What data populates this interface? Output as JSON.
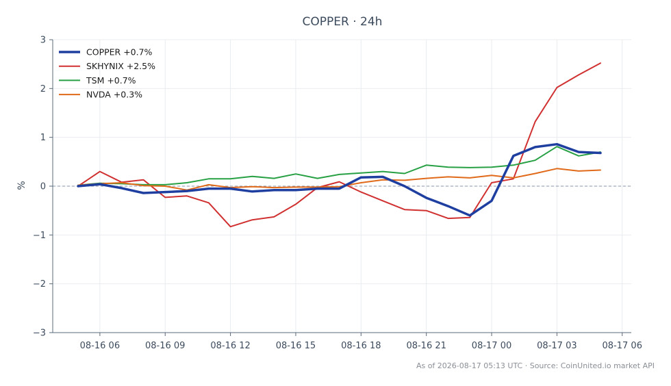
{
  "chart_data": {
    "type": "line",
    "title": "COPPER · 24h",
    "ylabel": "%",
    "xlabel": "",
    "ylim": [
      -3,
      3
    ],
    "xlim": [
      "08-16 03:50",
      "08-17 06:25"
    ],
    "yticks": [
      3,
      2,
      1,
      0,
      -1,
      -2,
      -3
    ],
    "ytick_labels": [
      "3",
      "2",
      "1",
      "0",
      "−1",
      "−2",
      "−3"
    ],
    "xticks": [
      "08-16 06:00",
      "08-16 09:00",
      "08-16 12:00",
      "08-16 15:00",
      "08-16 18:00",
      "08-16 21:00",
      "08-17 00:00",
      "08-17 03:00",
      "08-17 06:00"
    ],
    "xtick_labels": [
      "08-16 06",
      "08-16 09",
      "08-16 12",
      "08-16 15",
      "08-16 18",
      "08-16 21",
      "08-17 00",
      "08-17 03",
      "08-17 06"
    ],
    "grid": true,
    "zero_line": true,
    "legend_position": "top-left",
    "x": [
      "08-16 05:00",
      "08-16 06:00",
      "08-16 07:00",
      "08-16 08:00",
      "08-16 09:00",
      "08-16 10:00",
      "08-16 11:00",
      "08-16 12:00",
      "08-16 13:00",
      "08-16 14:00",
      "08-16 15:00",
      "08-16 16:00",
      "08-16 17:00",
      "08-16 18:00",
      "08-16 19:00",
      "08-16 20:00",
      "08-16 21:00",
      "08-16 22:00",
      "08-16 23:00",
      "08-17 00:00",
      "08-17 01:00",
      "08-17 02:00",
      "08-17 03:00",
      "08-17 04:00",
      "08-17 05:00"
    ],
    "series": [
      {
        "name": "COPPER +0.7%",
        "color": "#1f3fa0",
        "width": 3.5,
        "values": [
          0.0,
          0.04,
          -0.04,
          -0.14,
          -0.12,
          -0.1,
          -0.05,
          -0.05,
          -0.11,
          -0.08,
          -0.08,
          -0.05,
          -0.05,
          0.18,
          0.19,
          0.0,
          -0.24,
          -0.41,
          -0.6,
          -0.3,
          0.62,
          0.8,
          0.86,
          0.7,
          0.68
        ]
      },
      {
        "name": "SKHYNIX +2.5%",
        "color": "#d03030",
        "width": 2,
        "values": [
          0.0,
          0.3,
          0.08,
          0.13,
          -0.23,
          -0.2,
          -0.34,
          -0.83,
          -0.69,
          -0.63,
          -0.37,
          -0.03,
          0.09,
          -0.12,
          -0.3,
          -0.48,
          -0.5,
          -0.66,
          -0.64,
          0.07,
          0.15,
          1.32,
          2.02,
          2.28,
          2.52
        ]
      },
      {
        "name": "TSM +0.7%",
        "color": "#27a044",
        "width": 2,
        "values": [
          0.02,
          0.06,
          0.05,
          0.03,
          0.03,
          0.07,
          0.15,
          0.15,
          0.2,
          0.16,
          0.25,
          0.16,
          0.24,
          0.27,
          0.3,
          0.26,
          0.43,
          0.39,
          0.38,
          0.39,
          0.43,
          0.53,
          0.81,
          0.62,
          0.7
        ]
      },
      {
        "name": "NVDA +0.3%",
        "color": "#e06a1a",
        "width": 2,
        "values": [
          0.02,
          0.05,
          0.07,
          0.01,
          0.0,
          -0.08,
          0.03,
          -0.03,
          -0.01,
          -0.03,
          -0.02,
          -0.02,
          -0.01,
          0.07,
          0.13,
          0.12,
          0.16,
          0.19,
          0.17,
          0.22,
          0.17,
          0.26,
          0.36,
          0.31,
          0.33
        ]
      }
    ]
  },
  "footer": {
    "note": "As of 2026-08-17 05:13 UTC · Source: CoinUnited.io market API"
  }
}
